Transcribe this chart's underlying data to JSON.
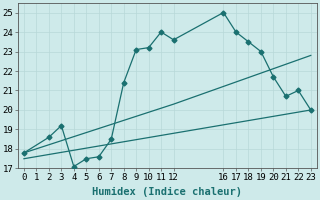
{
  "line1_x": [
    0,
    2,
    3,
    4,
    5,
    6,
    7,
    8,
    9,
    10,
    11,
    12,
    16,
    17,
    18,
    19,
    20,
    21,
    22,
    23
  ],
  "line1_y": [
    17.8,
    18.6,
    19.2,
    17.1,
    17.5,
    17.6,
    18.5,
    21.4,
    23.1,
    23.2,
    24.0,
    23.6,
    25.0,
    24.0,
    23.5,
    23.0,
    21.7,
    20.7,
    21.0,
    20.0
  ],
  "line2_x": [
    0,
    12,
    23
  ],
  "line2_y": [
    17.8,
    20.3,
    22.8
  ],
  "line3_x": [
    0,
    23
  ],
  "line3_y": [
    17.5,
    20.0
  ],
  "line_color": "#1a7070",
  "bg_color": "#ceeaea",
  "grid_color": "#b8d8d8",
  "xlabel": "Humidex (Indice chaleur)",
  "xlim": [
    -0.5,
    23.5
  ],
  "ylim": [
    17.0,
    25.5
  ],
  "xticks": [
    0,
    1,
    2,
    3,
    4,
    5,
    6,
    7,
    8,
    9,
    10,
    11,
    12,
    16,
    17,
    18,
    19,
    20,
    21,
    22,
    23
  ],
  "yticks": [
    17,
    18,
    19,
    20,
    21,
    22,
    23,
    24,
    25
  ],
  "tick_fontsize": 6.5,
  "xlabel_fontsize": 7.5
}
